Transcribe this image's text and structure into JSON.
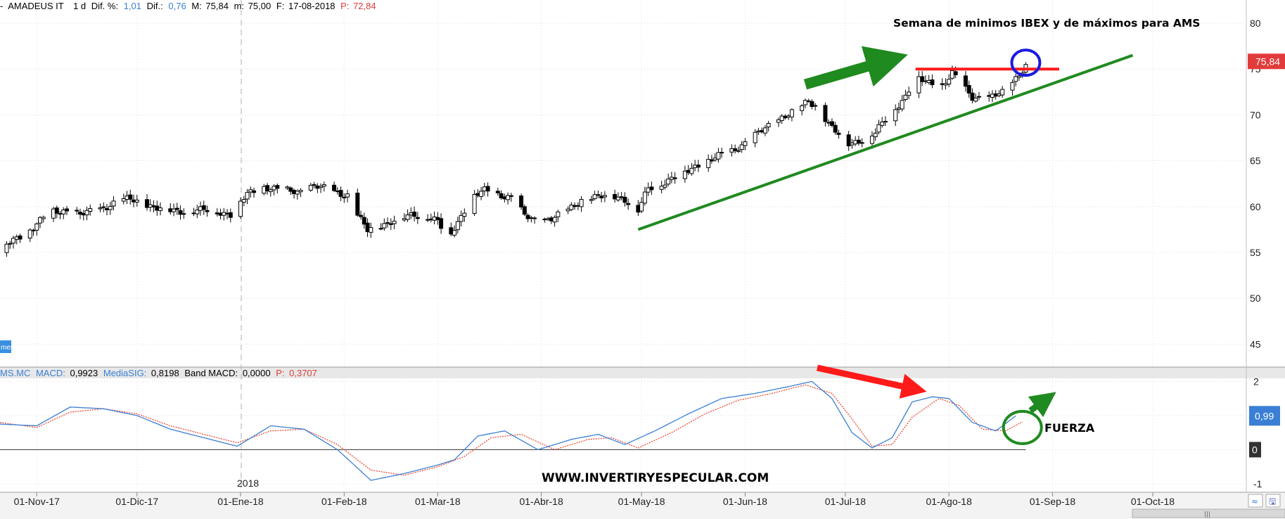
{
  "header": {
    "prefix": "-",
    "name": "AMADEUS IT",
    "period": "1 d",
    "dif_pct_label": "Dif. %:",
    "dif_pct_value": "1,01",
    "dif_label": "Dif.:",
    "dif_value": "0,76",
    "m_label": "M:",
    "m_value": "75,84",
    "min_label": "m:",
    "min_value": "75,00",
    "f_label": "F:",
    "f_value": "17-08-2018",
    "p_label": "P:",
    "p_value": "72,84"
  },
  "macd_header": {
    "symbol": "MS.MC",
    "macd_label": "MACD:",
    "macd_value": "0,9923",
    "sig_label": "MediaSIG:",
    "sig_value": "0,8198",
    "band_label": "Band MACD:",
    "band_value": "0,0000",
    "p_label": "P:",
    "p_value": "0,3707"
  },
  "side_tag": "mes",
  "year_label": "2018",
  "price_tag": "75,84",
  "macd_tag_value": "0,99",
  "macd_tag_zero": "0",
  "annotations": {
    "title": "Semana de minimos IBEX y de máximos para AMS",
    "fuerza": "FUERZA",
    "website": "WWW.INVERTIRYESPECULAR.COM"
  },
  "colors": {
    "macd_line": "#3a7fd5",
    "signal_line": "#e8402a",
    "trend_line": "#1f8a1f",
    "resistance": "#ff1a1a",
    "circle": "#1a1ae0",
    "price_tag_bg": "#e23b3b",
    "macd_tag_bg": "#3a7fd5"
  },
  "chart_data": [
    {
      "type": "candlestick",
      "title": "Semana de minimos IBEX y de máximos para AMS",
      "x_tick_labels": [
        "01-Nov-17",
        "01-Dic-17",
        "01-Ene-18",
        "01-Feb-18",
        "01-Mar-18",
        "01-Abr-18",
        "01-May-18",
        "01-Jun-18",
        "01-Jul-18",
        "01-Ago-18",
        "01-Sep-18",
        "01-Oct-18"
      ],
      "x_tick_days": [
        0,
        30,
        61,
        92,
        120,
        151,
        181,
        212,
        242,
        273,
        304,
        334
      ],
      "x_range_days": [
        -11,
        362
      ],
      "y_ticks": [
        45,
        50,
        55,
        60,
        65,
        70,
        75,
        80
      ],
      "ylim": [
        42.5,
        81
      ],
      "grid": true,
      "close_anchors": [
        [
          -11,
          55.4
        ],
        [
          -6,
          56.5
        ],
        [
          -1,
          57.8
        ],
        [
          4,
          59.4
        ],
        [
          9,
          59.6
        ],
        [
          13,
          59.1
        ],
        [
          18,
          59.6
        ],
        [
          23,
          60.4
        ],
        [
          28,
          60.8
        ],
        [
          33,
          60.2
        ],
        [
          38,
          59.6
        ],
        [
          43,
          59.5
        ],
        [
          48,
          59.6
        ],
        [
          53,
          59.5
        ],
        [
          58,
          59.2
        ],
        [
          63,
          61.3
        ],
        [
          68,
          62.2
        ],
        [
          73,
          61.8
        ],
        [
          78,
          61.6
        ],
        [
          83,
          62.3
        ],
        [
          88,
          61.7
        ],
        [
          93,
          61.3
        ],
        [
          96,
          59.0
        ],
        [
          99,
          57.4
        ],
        [
          103,
          58.0
        ],
        [
          108,
          58.6
        ],
        [
          113,
          59.1
        ],
        [
          117,
          58.9
        ],
        [
          120,
          58.4
        ],
        [
          123,
          56.4
        ],
        [
          127,
          59.0
        ],
        [
          130,
          61.0
        ],
        [
          134,
          61.7
        ],
        [
          138,
          61.4
        ],
        [
          142,
          61.0
        ],
        [
          146,
          59.0
        ],
        [
          150,
          58.4
        ],
        [
          154,
          58.7
        ],
        [
          158,
          59.3
        ],
        [
          163,
          60.8
        ],
        [
          168,
          61.0
        ],
        [
          173,
          61.2
        ],
        [
          176,
          60.8
        ],
        [
          180,
          59.5
        ],
        [
          183,
          62.0
        ],
        [
          188,
          62.7
        ],
        [
          193,
          63.5
        ],
        [
          198,
          64.6
        ],
        [
          203,
          65.3
        ],
        [
          208,
          66.1
        ],
        [
          213,
          67.2
        ],
        [
          218,
          68.5
        ],
        [
          223,
          69.8
        ],
        [
          228,
          70.6
        ],
        [
          231,
          71.5
        ],
        [
          234,
          70.8
        ],
        [
          237,
          69.0
        ],
        [
          240,
          67.8
        ],
        [
          243,
          66.9
        ],
        [
          247,
          67.3
        ],
        [
          251,
          68.0
        ],
        [
          255,
          70.0
        ],
        [
          260,
          72.0
        ],
        [
          263,
          74.0
        ],
        [
          267,
          73.5
        ],
        [
          271,
          73.2
        ],
        [
          274,
          74.5
        ],
        [
          276,
          73.6
        ],
        [
          280,
          72.0
        ],
        [
          285,
          71.8
        ],
        [
          289,
          72.4
        ],
        [
          294,
          74.5
        ],
        [
          297,
          75.84
        ]
      ],
      "session_high_last": 75.84,
      "session_low_last": 75.0,
      "resistance_level": 75.0,
      "trendline": {
        "from": [
          180,
          57.5
        ],
        "to": [
          328,
          76.5
        ]
      },
      "value_marker": 75.84
    },
    {
      "type": "line",
      "title": "MACD",
      "y_ticks": [
        -1,
        0,
        1,
        2
      ],
      "ylim": [
        -1.25,
        2.05
      ],
      "zero_line": 0,
      "series": [
        {
          "name": "MACD",
          "anchors": [
            [
              -11,
              0.75
            ],
            [
              0,
              0.7
            ],
            [
              10,
              1.25
            ],
            [
              20,
              1.2
            ],
            [
              30,
              1.0
            ],
            [
              40,
              0.6
            ],
            [
              50,
              0.35
            ],
            [
              60,
              0.1
            ],
            [
              70,
              0.7
            ],
            [
              80,
              0.6
            ],
            [
              90,
              0.0
            ],
            [
              100,
              -0.9
            ],
            [
              110,
              -0.7
            ],
            [
              120,
              -0.45
            ],
            [
              125,
              -0.3
            ],
            [
              132,
              0.4
            ],
            [
              140,
              0.55
            ],
            [
              150,
              0.0
            ],
            [
              160,
              0.3
            ],
            [
              168,
              0.45
            ],
            [
              176,
              0.15
            ],
            [
              185,
              0.55
            ],
            [
              195,
              1.05
            ],
            [
              205,
              1.5
            ],
            [
              215,
              1.65
            ],
            [
              225,
              1.85
            ],
            [
              232,
              2.0
            ],
            [
              238,
              1.5
            ],
            [
              244,
              0.5
            ],
            [
              250,
              0.05
            ],
            [
              256,
              0.35
            ],
            [
              262,
              1.4
            ],
            [
              268,
              1.55
            ],
            [
              273,
              1.5
            ],
            [
              280,
              0.8
            ],
            [
              287,
              0.55
            ],
            [
              293,
              0.99
            ]
          ]
        },
        {
          "name": "MediaSIG",
          "anchors": [
            [
              -11,
              0.8
            ],
            [
              0,
              0.65
            ],
            [
              10,
              1.1
            ],
            [
              20,
              1.2
            ],
            [
              30,
              1.05
            ],
            [
              40,
              0.7
            ],
            [
              50,
              0.45
            ],
            [
              60,
              0.2
            ],
            [
              70,
              0.55
            ],
            [
              80,
              0.6
            ],
            [
              90,
              0.15
            ],
            [
              100,
              -0.6
            ],
            [
              110,
              -0.75
            ],
            [
              120,
              -0.5
            ],
            [
              128,
              -0.2
            ],
            [
              136,
              0.35
            ],
            [
              145,
              0.45
            ],
            [
              155,
              0.0
            ],
            [
              165,
              0.3
            ],
            [
              172,
              0.35
            ],
            [
              180,
              0.05
            ],
            [
              190,
              0.5
            ],
            [
              200,
              1.05
            ],
            [
              210,
              1.45
            ],
            [
              220,
              1.65
            ],
            [
              230,
              1.9
            ],
            [
              238,
              1.65
            ],
            [
              244,
              0.9
            ],
            [
              250,
              0.1
            ],
            [
              256,
              0.15
            ],
            [
              262,
              0.95
            ],
            [
              270,
              1.5
            ],
            [
              276,
              1.3
            ],
            [
              283,
              0.6
            ],
            [
              290,
              0.55
            ],
            [
              295,
              0.82
            ]
          ]
        }
      ],
      "circle_at": [
        295,
        0.65
      ]
    }
  ]
}
